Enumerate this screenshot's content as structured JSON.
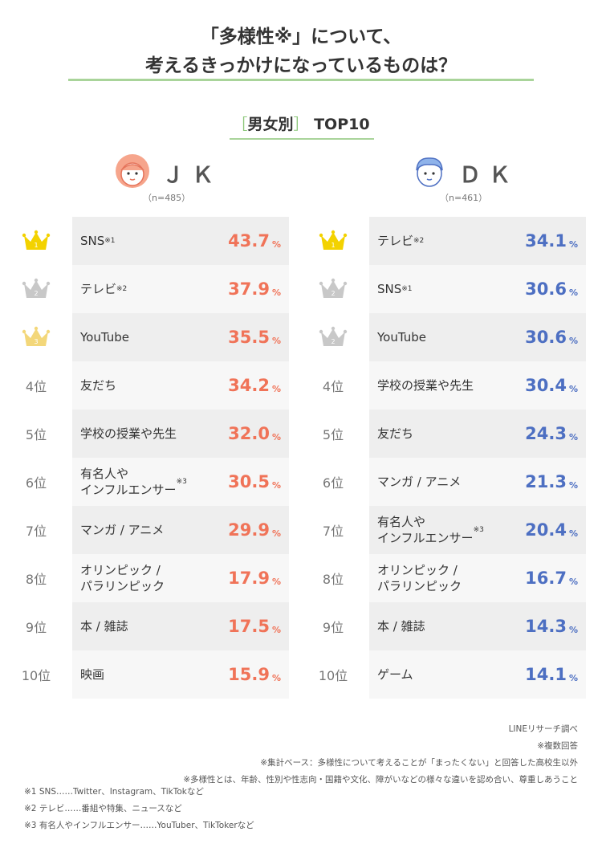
{
  "title": {
    "line1": "「多様性※」について、",
    "line2": "考えるきっかけになっているものは？"
  },
  "subtitle": {
    "open": "［",
    "text": "男女別",
    "close": "］",
    "top": "TOP10"
  },
  "colors": {
    "jk": "#f07358",
    "dk": "#4d6fc2",
    "gold": "#f3d200",
    "silver": "#c8c8c8",
    "bronze": "#f3d77a",
    "accent_line": "#a9d49a"
  },
  "jk": {
    "label": "ＪＫ",
    "n": "（n=485）"
  },
  "dk": {
    "label": "ＤＫ",
    "n": "（n=461）"
  },
  "pct_unit": "%",
  "chart_data": [
    {
      "type": "table",
      "title": "ＪＫ",
      "ranks": [
        "1",
        "2",
        "3",
        "4位",
        "5位",
        "6位",
        "7位",
        "8位",
        "9位",
        "10位"
      ],
      "categories": [
        "SNS※1",
        "テレビ※2",
        "YouTube",
        "友だち",
        "学校の授業や先生",
        "有名人や\nインフルエンサー※3",
        "マンガ / アニメ",
        "オリンピック /\nパラリンピック",
        "本 / 雑誌",
        "映画"
      ],
      "values": [
        43.7,
        37.9,
        35.5,
        34.2,
        32.0,
        30.5,
        29.9,
        17.9,
        17.5,
        15.9
      ],
      "value_labels": [
        "43.7",
        "37.9",
        "35.5",
        "34.2",
        "32.0",
        "30.5",
        "29.9",
        "17.9",
        "17.5",
        "15.9"
      ]
    },
    {
      "type": "table",
      "title": "ＤＫ",
      "ranks": [
        "1",
        "2",
        "2",
        "4位",
        "5位",
        "6位",
        "7位",
        "8位",
        "9位",
        "10位"
      ],
      "categories": [
        "テレビ※2",
        "SNS※1",
        "YouTube",
        "学校の授業や先生",
        "友だち",
        "マンガ / アニメ",
        "有名人や\nインフルエンサー※3",
        "オリンピック /\nパラリンピック",
        "本 / 雑誌",
        "ゲーム"
      ],
      "values": [
        34.1,
        30.6,
        30.6,
        30.4,
        24.3,
        21.3,
        20.4,
        16.7,
        14.3,
        14.1
      ],
      "value_labels": [
        "34.1",
        "30.6",
        "30.6",
        "30.4",
        "24.3",
        "21.3",
        "20.4",
        "16.7",
        "14.3",
        "14.1"
      ]
    }
  ],
  "notes": [
    "LINEリサーチ調べ",
    "※複数回答",
    "※集計ベース：多様性について考えることが「まったくない」と回答した高校生以外",
    "※多様性とは、年齢、性別や性志向・国籍や文化、障がいなどの様々な違いを認め合い、尊重しあうこと"
  ],
  "footnotes": [
    "※1 SNS……Twitter、Instagram、TikTokなど",
    "※2 テレビ……番組や特集、ニュースなど",
    "※3 有名人やインフルエンサー……YouTuber、TikTokerなど"
  ]
}
